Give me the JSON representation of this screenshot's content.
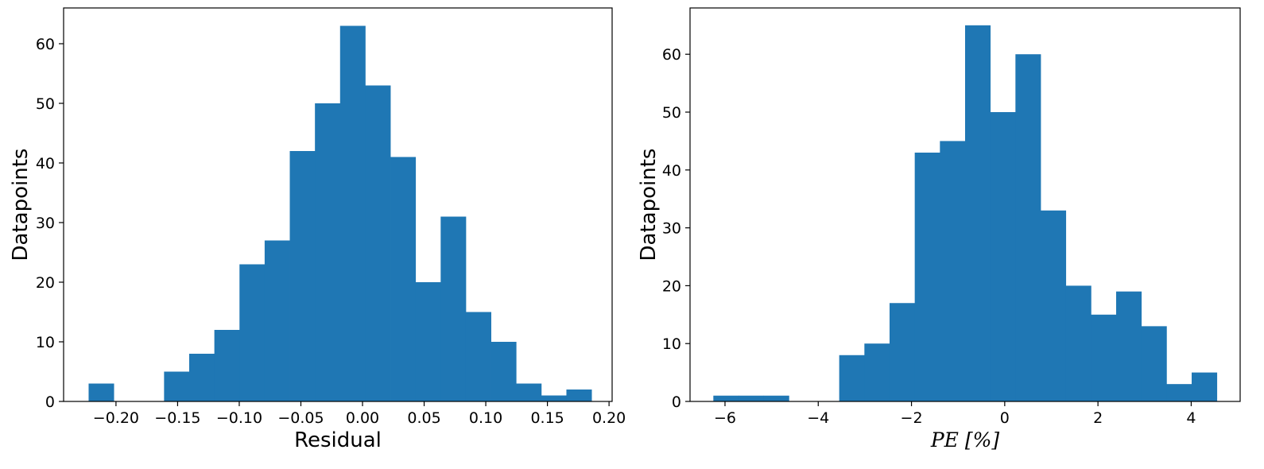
{
  "chart_data": [
    {
      "type": "bar",
      "title": "",
      "xlabel": "Residual",
      "ylabel": "Datapoints",
      "xlim": [
        -0.2425,
        0.2025
      ],
      "ylim": [
        0,
        66
      ],
      "xticks": [
        -0.2,
        -0.15,
        -0.1,
        -0.05,
        0.0,
        0.05,
        0.1,
        0.15,
        0.2
      ],
      "xtick_labels": [
        "−0.20",
        "−0.15",
        "−0.10",
        "−0.05",
        "0.00",
        "0.05",
        "0.10",
        "0.15",
        "0.20"
      ],
      "yticks": [
        0,
        10,
        20,
        30,
        40,
        50,
        60
      ],
      "ytick_labels": [
        "0",
        "10",
        "20",
        "30",
        "40",
        "50",
        "60"
      ],
      "bin_edges": [
        -0.2222,
        -0.2018,
        -0.1814,
        -0.161,
        -0.1406,
        -0.1202,
        -0.0998,
        -0.0794,
        -0.059,
        -0.0386,
        -0.0182,
        0.0022,
        0.0226,
        0.043,
        0.0634,
        0.0838,
        0.1042,
        0.1246,
        0.145,
        0.1654,
        0.1858
      ],
      "values": [
        3,
        0,
        0,
        5,
        8,
        12,
        23,
        27,
        42,
        50,
        63,
        53,
        41,
        20,
        31,
        15,
        10,
        3,
        1,
        2
      ],
      "color": "#1f77b4",
      "grid": false
    },
    {
      "type": "bar",
      "title": "",
      "xlabel": "PE [%]",
      "ylabel": "Datapoints",
      "xlim": [
        -6.75,
        5.05
      ],
      "ylim": [
        0,
        68
      ],
      "xticks": [
        -6,
        -4,
        -2,
        0,
        2,
        4
      ],
      "xtick_labels": [
        "−6",
        "−4",
        "−2",
        "0",
        "2",
        "4"
      ],
      "yticks": [
        0,
        10,
        20,
        30,
        40,
        50,
        60
      ],
      "ytick_labels": [
        "0",
        "10",
        "20",
        "30",
        "40",
        "50",
        "60"
      ],
      "bin_edges": [
        -6.25,
        -5.71,
        -5.17,
        -4.63,
        -4.09,
        -3.55,
        -3.01,
        -2.47,
        -1.93,
        -1.39,
        -0.85,
        -0.31,
        0.23,
        0.77,
        1.31,
        1.85,
        2.39,
        2.93,
        3.47,
        4.01,
        4.55
      ],
      "values": [
        1,
        1,
        1,
        0,
        0,
        8,
        10,
        17,
        43,
        45,
        65,
        50,
        60,
        33,
        20,
        15,
        19,
        13,
        3,
        5
      ],
      "color": "#1f77b4",
      "grid": false
    }
  ]
}
